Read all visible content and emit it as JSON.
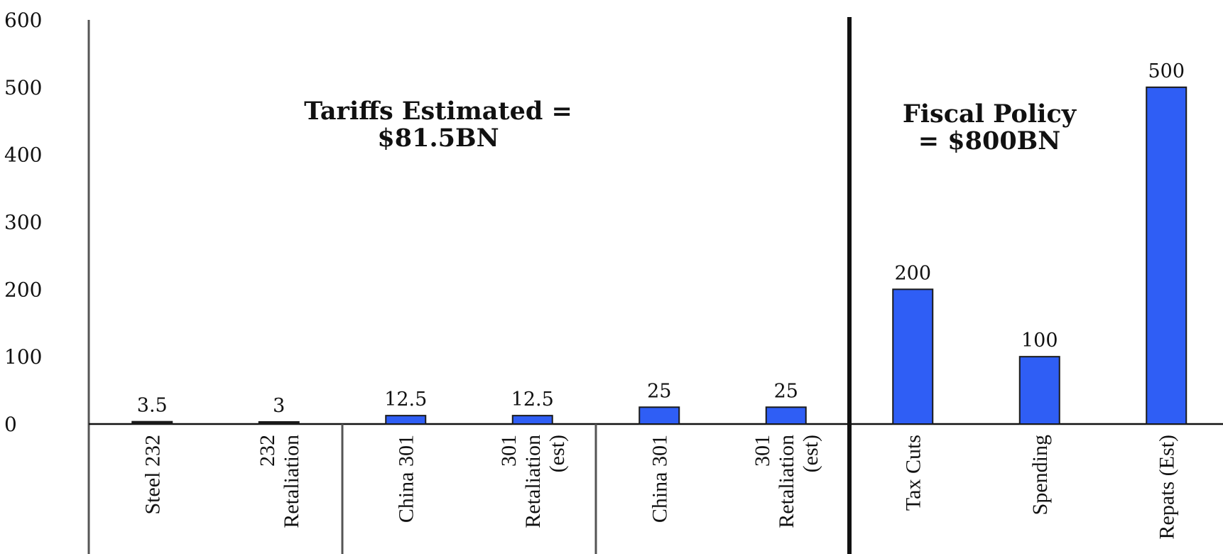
{
  "chart_data": {
    "type": "bar",
    "ylim": [
      0,
      600
    ],
    "yticks": [
      0,
      100,
      200,
      300,
      400,
      500,
      600
    ],
    "grid": false,
    "categories": [
      [
        "Steel 232"
      ],
      [
        "232",
        "Retaliation"
      ],
      [
        "China 301"
      ],
      [
        "301",
        "Retaliation",
        "(est)"
      ],
      [
        "China 301"
      ],
      [
        "301",
        "Retaliation",
        "(est)"
      ],
      [
        "Tax Cuts"
      ],
      [
        "Spending"
      ],
      [
        "Repats (Est)"
      ]
    ],
    "values": [
      3.5,
      3,
      12.5,
      12.5,
      25,
      25,
      200,
      100,
      500
    ],
    "data_labels": [
      "3.5",
      "3",
      "12.5",
      "12.5",
      "25",
      "25",
      "200",
      "100",
      "500"
    ],
    "bar_colors": [
      "#1a1a1a",
      "#1a1a1a",
      "#2f5ef5",
      "#2f5ef5",
      "#2f5ef5",
      "#2f5ef5",
      "#2f5ef5",
      "#2f5ef5",
      "#2f5ef5"
    ],
    "annotations": [
      {
        "lines": [
          "Tariffs Estimated =",
          "$81.5BN"
        ]
      },
      {
        "lines": [
          "Fiscal Policy",
          "= $800BN"
        ]
      }
    ]
  }
}
